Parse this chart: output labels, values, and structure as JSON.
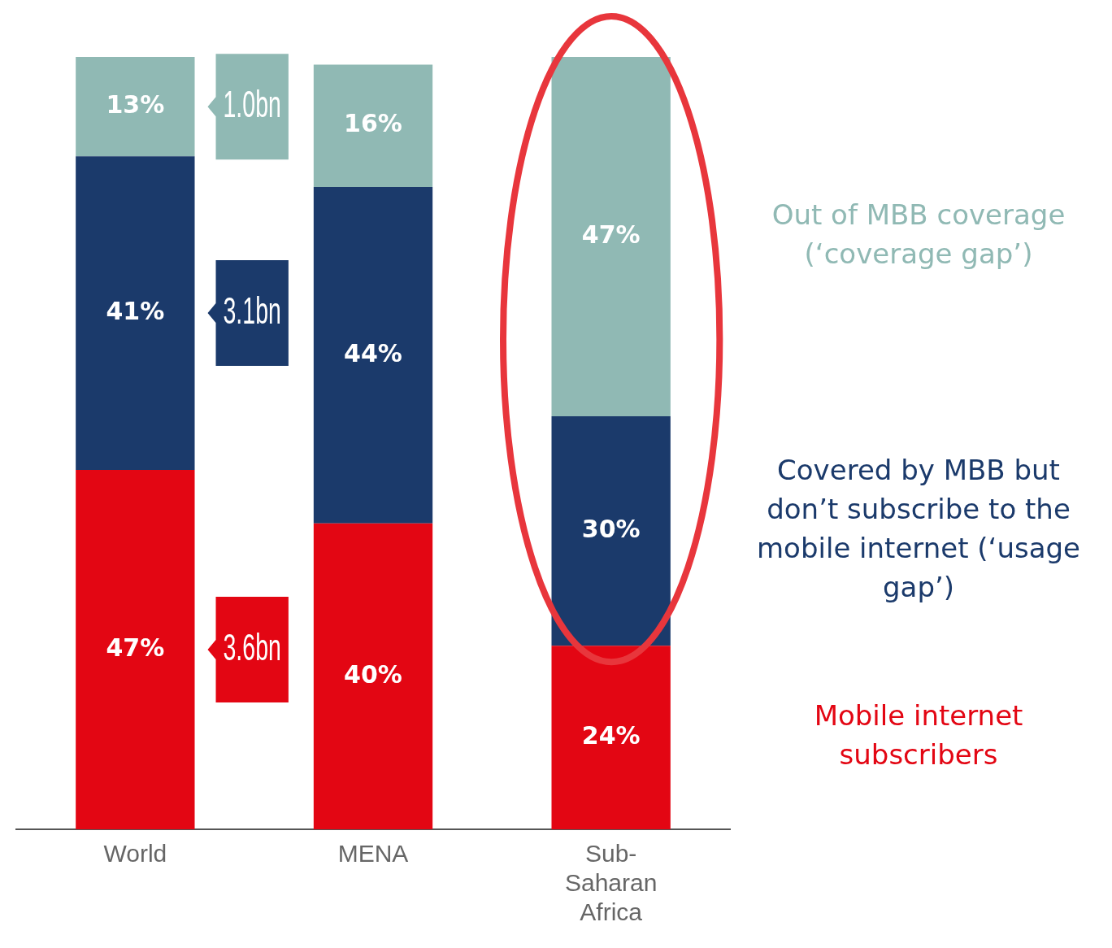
{
  "chart_data": {
    "type": "bar",
    "stacked": true,
    "categories": [
      "World",
      "MENA",
      "Sub-Saharan Africa"
    ],
    "series": [
      {
        "name": "Mobile internet subscribers",
        "color": "#e30613",
        "values": [
          47,
          40,
          24
        ],
        "value_labels": [
          "47%",
          "40%",
          "24%"
        ]
      },
      {
        "name": "Covered by MBB but don’t subscribe to the mobile internet (‘usage gap’)",
        "color": "#1b3a6b",
        "values": [
          41,
          44,
          30
        ],
        "value_labels": [
          "41%",
          "44%",
          "30%"
        ]
      },
      {
        "name": "Out of MBB coverage (‘coverage gap’)",
        "color": "#90b9b4",
        "values": [
          13,
          16,
          47
        ],
        "value_labels": [
          "13%",
          "16%",
          "47%"
        ]
      }
    ],
    "annotations": [
      "3.6bn",
      "3.1bn",
      "1.0bn"
    ]
  }
}
